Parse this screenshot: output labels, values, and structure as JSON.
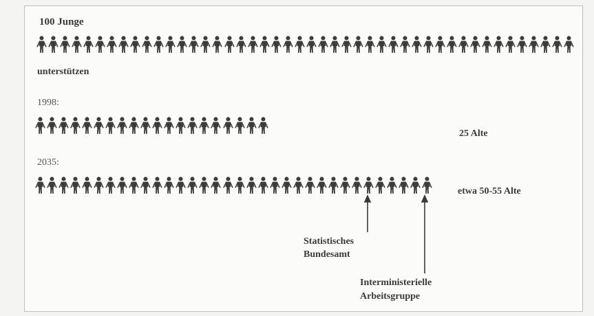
{
  "header": {
    "label": "100 Junge"
  },
  "support_label": "unterstützen",
  "rows": [
    {
      "year_label": "",
      "figures": 46,
      "result_label": ""
    },
    {
      "year_label": "1998:",
      "figures": 20,
      "result_label": "25 Alte"
    },
    {
      "year_label": "2035:",
      "figures": 34,
      "result_label": "etwa 50-55 Alte"
    }
  ],
  "annotations": {
    "statistisches": [
      "Statistisches",
      "Bundesamt"
    ],
    "interministerielle": [
      "Interministerielle",
      "Arbeitsgruppe"
    ]
  },
  "colors": {
    "figure": "#3c3c3c",
    "text": "#3a3a3a",
    "background": "#fbfbfa"
  },
  "icons": {
    "figure": "person-icon"
  }
}
